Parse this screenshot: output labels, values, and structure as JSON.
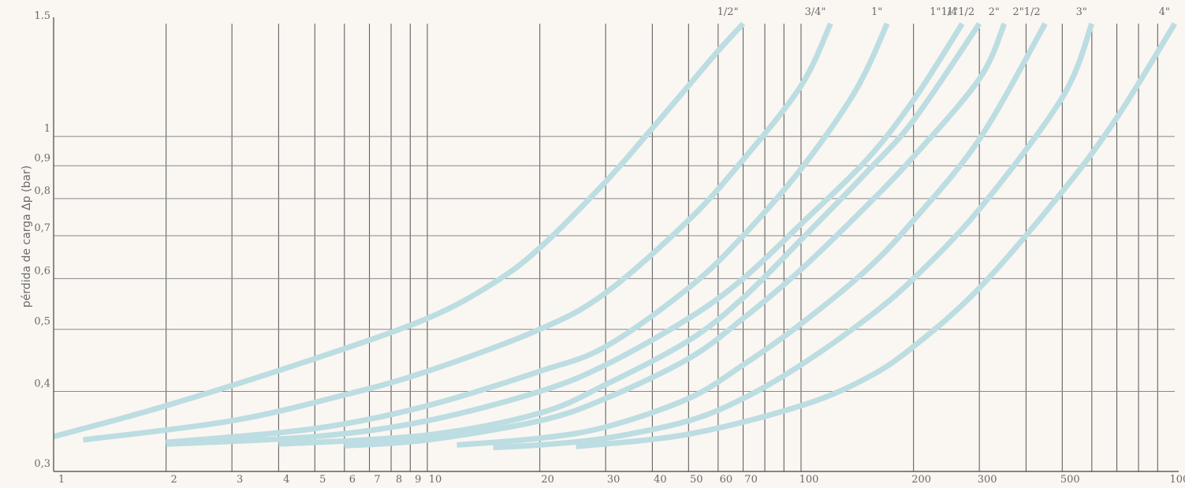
{
  "chart_data": {
    "type": "line",
    "title": "",
    "xlabel": "",
    "ylabel": "pérdida de carga Δp (bar)",
    "x_scale": "log",
    "y_scale": "log",
    "xlim": [
      1,
      1000
    ],
    "ylim": [
      0.3,
      1.5
    ],
    "grid": true,
    "legend": "none",
    "x_ticks": [
      {
        "value": 1,
        "label": "1"
      },
      {
        "value": 2,
        "label": "2"
      },
      {
        "value": 3,
        "label": "3"
      },
      {
        "value": 4,
        "label": "4"
      },
      {
        "value": 5,
        "label": "5"
      },
      {
        "value": 6,
        "label": "6"
      },
      {
        "value": 7,
        "label": "7"
      },
      {
        "value": 8,
        "label": "8"
      },
      {
        "value": 9,
        "label": "9"
      },
      {
        "value": 10,
        "label": "10"
      },
      {
        "value": 20,
        "label": "20"
      },
      {
        "value": 30,
        "label": "30"
      },
      {
        "value": 40,
        "label": "40"
      },
      {
        "value": 50,
        "label": "50"
      },
      {
        "value": 60,
        "label": "60"
      },
      {
        "value": 70,
        "label": "70"
      },
      {
        "value": 100,
        "label": "100"
      },
      {
        "value": 200,
        "label": "200"
      },
      {
        "value": 300,
        "label": "300"
      },
      {
        "value": 500,
        "label": "500"
      },
      {
        "value": 1000,
        "label": "1000"
      }
    ],
    "x_grid": [
      2,
      3,
      4,
      5,
      6,
      7,
      8,
      9,
      10,
      20,
      30,
      40,
      50,
      60,
      70,
      80,
      90,
      100,
      200,
      300,
      400,
      500,
      600,
      700,
      800,
      900
    ],
    "y_ticks": [
      {
        "value": 0.3,
        "label": "0,3"
      },
      {
        "value": 0.4,
        "label": "0,4"
      },
      {
        "value": 0.5,
        "label": "0,5"
      },
      {
        "value": 0.6,
        "label": "0,6"
      },
      {
        "value": 0.7,
        "label": "0,7"
      },
      {
        "value": 0.8,
        "label": "0,8"
      },
      {
        "value": 0.9,
        "label": "0,9"
      },
      {
        "value": 1.0,
        "label": "1"
      },
      {
        "value": 1.5,
        "label": "1.5"
      }
    ],
    "y_grid": [
      0.4,
      0.5,
      0.6,
      0.7,
      0.8,
      0.9,
      1.0
    ],
    "line_color": "#bcdde2",
    "series": [
      {
        "name": "1/2\"",
        "x": [
          1,
          2,
          5,
          10,
          15,
          20,
          30,
          40,
          50,
          60,
          70
        ],
        "y": [
          0.34,
          0.38,
          0.45,
          0.52,
          0.59,
          0.67,
          0.85,
          1.03,
          1.2,
          1.36,
          1.5
        ]
      },
      {
        "name": "3/4\"",
        "x": [
          1.2,
          3,
          6,
          10,
          20,
          30,
          50,
          70,
          100,
          120
        ],
        "y": [
          0.336,
          0.36,
          0.395,
          0.43,
          0.5,
          0.57,
          0.74,
          0.92,
          1.2,
          1.5
        ]
      },
      {
        "name": "1\"",
        "x": [
          2,
          5,
          10,
          20,
          30,
          50,
          70,
          100,
          140,
          170
        ],
        "y": [
          0.333,
          0.35,
          0.38,
          0.43,
          0.47,
          0.58,
          0.7,
          0.89,
          1.18,
          1.5
        ]
      },
      {
        "name": "1\"1/4",
        "x": [
          2,
          5,
          10,
          20,
          30,
          50,
          70,
          100,
          150,
          200,
          270
        ],
        "y": [
          0.331,
          0.34,
          0.36,
          0.4,
          0.44,
          0.52,
          0.6,
          0.73,
          0.92,
          1.14,
          1.5
        ]
      },
      {
        "name": "1\"1/2",
        "x": [
          4,
          10,
          20,
          30,
          50,
          70,
          100,
          150,
          200,
          300
        ],
        "y": [
          0.331,
          0.342,
          0.37,
          0.41,
          0.48,
          0.56,
          0.69,
          0.88,
          1.06,
          1.5
        ]
      },
      {
        "name": "2\"",
        "x": [
          6,
          10,
          20,
          30,
          50,
          70,
          100,
          150,
          200,
          300,
          350
        ],
        "y": [
          0.329,
          0.336,
          0.36,
          0.39,
          0.45,
          0.52,
          0.62,
          0.78,
          0.93,
          1.23,
          1.5
        ]
      },
      {
        "name": "2\"1/2",
        "x": [
          12,
          20,
          30,
          50,
          70,
          100,
          150,
          200,
          300,
          450
        ],
        "y": [
          0.33,
          0.338,
          0.352,
          0.39,
          0.44,
          0.51,
          0.62,
          0.74,
          0.99,
          1.5
        ]
      },
      {
        "name": "3\"",
        "x": [
          15,
          20,
          30,
          50,
          70,
          100,
          150,
          200,
          300,
          500,
          600
        ],
        "y": [
          0.327,
          0.33,
          0.338,
          0.36,
          0.39,
          0.44,
          0.52,
          0.6,
          0.77,
          1.15,
          1.5
        ]
      },
      {
        "name": "4\"",
        "x": [
          25,
          50,
          100,
          150,
          200,
          300,
          500,
          700,
          1000
        ],
        "y": [
          0.328,
          0.343,
          0.38,
          0.42,
          0.47,
          0.58,
          0.82,
          1.07,
          1.5
        ]
      }
    ]
  }
}
